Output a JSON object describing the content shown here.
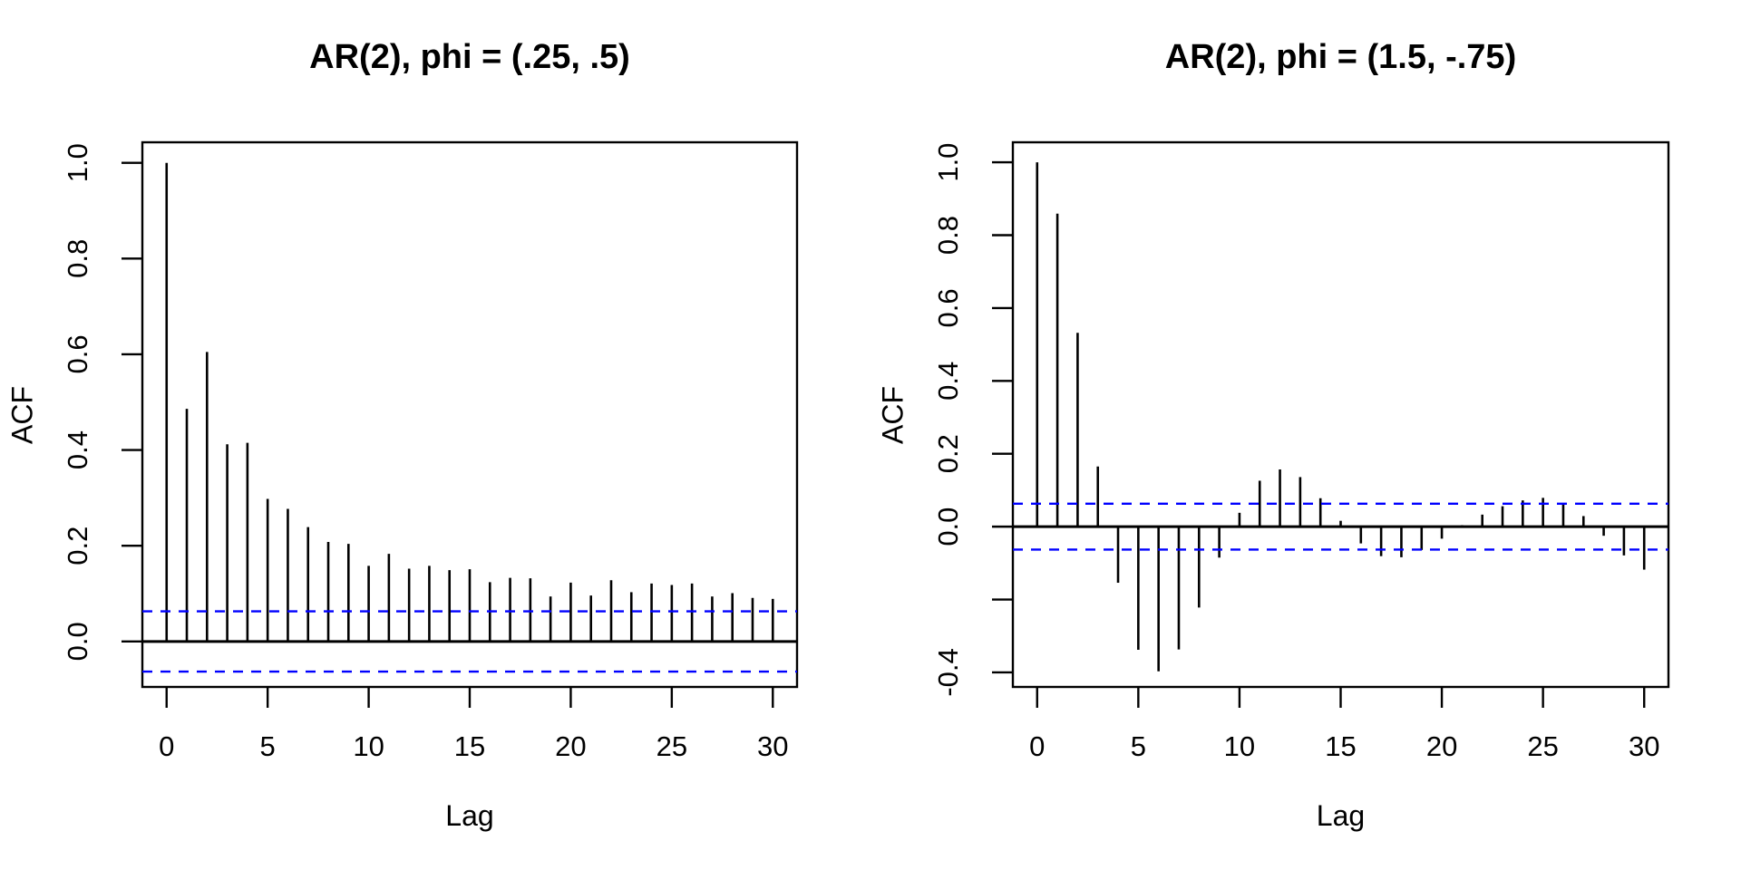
{
  "figure": {
    "background": "#ffffff",
    "axis_color": "#000000",
    "bar_color": "#000000",
    "conf_band_color": "#0000ff"
  },
  "chart_data": [
    {
      "type": "bar",
      "subtype": "acf-stem-plot",
      "title": "AR(2), phi = (.25, .5)",
      "xlabel": "Lag",
      "ylabel": "ACF",
      "x": [
        0,
        1,
        2,
        3,
        4,
        5,
        6,
        7,
        8,
        9,
        10,
        11,
        12,
        13,
        14,
        15,
        16,
        17,
        18,
        19,
        20,
        21,
        22,
        23,
        24,
        25,
        26,
        27,
        28,
        29,
        30
      ],
      "values": [
        1.0,
        0.486,
        0.605,
        0.412,
        0.415,
        0.298,
        0.277,
        0.239,
        0.208,
        0.204,
        0.158,
        0.183,
        0.152,
        0.158,
        0.149,
        0.151,
        0.124,
        0.133,
        0.132,
        0.094,
        0.123,
        0.096,
        0.128,
        0.103,
        0.121,
        0.118,
        0.121,
        0.094,
        0.101,
        0.091,
        0.089
      ],
      "conf_level": 0.063,
      "conf_style": "dashed",
      "conf_color": "#0000ff",
      "zero_line": 0,
      "grid": false,
      "legend": null,
      "xlim": [
        -1.2,
        31.2
      ],
      "ylim": [
        -0.095,
        1.043
      ],
      "x_ticks": [
        0,
        5,
        10,
        15,
        20,
        25,
        30
      ],
      "y_ticks": [
        {
          "v": 0.0,
          "label": "0.0"
        },
        {
          "v": 0.2,
          "label": "0.2"
        },
        {
          "v": 0.4,
          "label": "0.4"
        },
        {
          "v": 0.6,
          "label": "0.6"
        },
        {
          "v": 0.8,
          "label": "0.8"
        },
        {
          "v": 1.0,
          "label": "1.0"
        }
      ]
    },
    {
      "type": "bar",
      "subtype": "acf-stem-plot",
      "title": "AR(2), phi = (1.5, -.75)",
      "xlabel": "Lag",
      "ylabel": "ACF",
      "x": [
        0,
        1,
        2,
        3,
        4,
        5,
        6,
        7,
        8,
        9,
        10,
        11,
        12,
        13,
        14,
        15,
        16,
        17,
        18,
        19,
        20,
        21,
        22,
        23,
        24,
        25,
        26,
        27,
        28,
        29,
        30
      ],
      "values": [
        1.0,
        0.859,
        0.532,
        0.165,
        -0.154,
        -0.338,
        -0.397,
        -0.337,
        -0.222,
        -0.085,
        0.038,
        0.126,
        0.157,
        0.136,
        0.078,
        0.016,
        -0.046,
        -0.081,
        -0.084,
        -0.064,
        -0.033,
        0.004,
        0.033,
        0.056,
        0.072,
        0.079,
        0.065,
        0.029,
        -0.025,
        -0.079,
        -0.118
      ],
      "conf_level": 0.063,
      "conf_style": "dashed",
      "conf_color": "#0000ff",
      "zero_line": 0,
      "grid": false,
      "legend": null,
      "xlim": [
        -1.2,
        31.2
      ],
      "ylim": [
        -0.44,
        1.055
      ],
      "x_ticks": [
        0,
        5,
        10,
        15,
        20,
        25,
        30
      ],
      "y_ticks": [
        {
          "v": -0.4,
          "label": "-0.4"
        },
        {
          "v": -0.2,
          "label": ""
        },
        {
          "v": 0.0,
          "label": "0.0"
        },
        {
          "v": 0.2,
          "label": "0.2"
        },
        {
          "v": 0.4,
          "label": "0.4"
        },
        {
          "v": 0.6,
          "label": "0.6"
        },
        {
          "v": 0.8,
          "label": "0.8"
        },
        {
          "v": 1.0,
          "label": "1.0"
        }
      ]
    }
  ]
}
